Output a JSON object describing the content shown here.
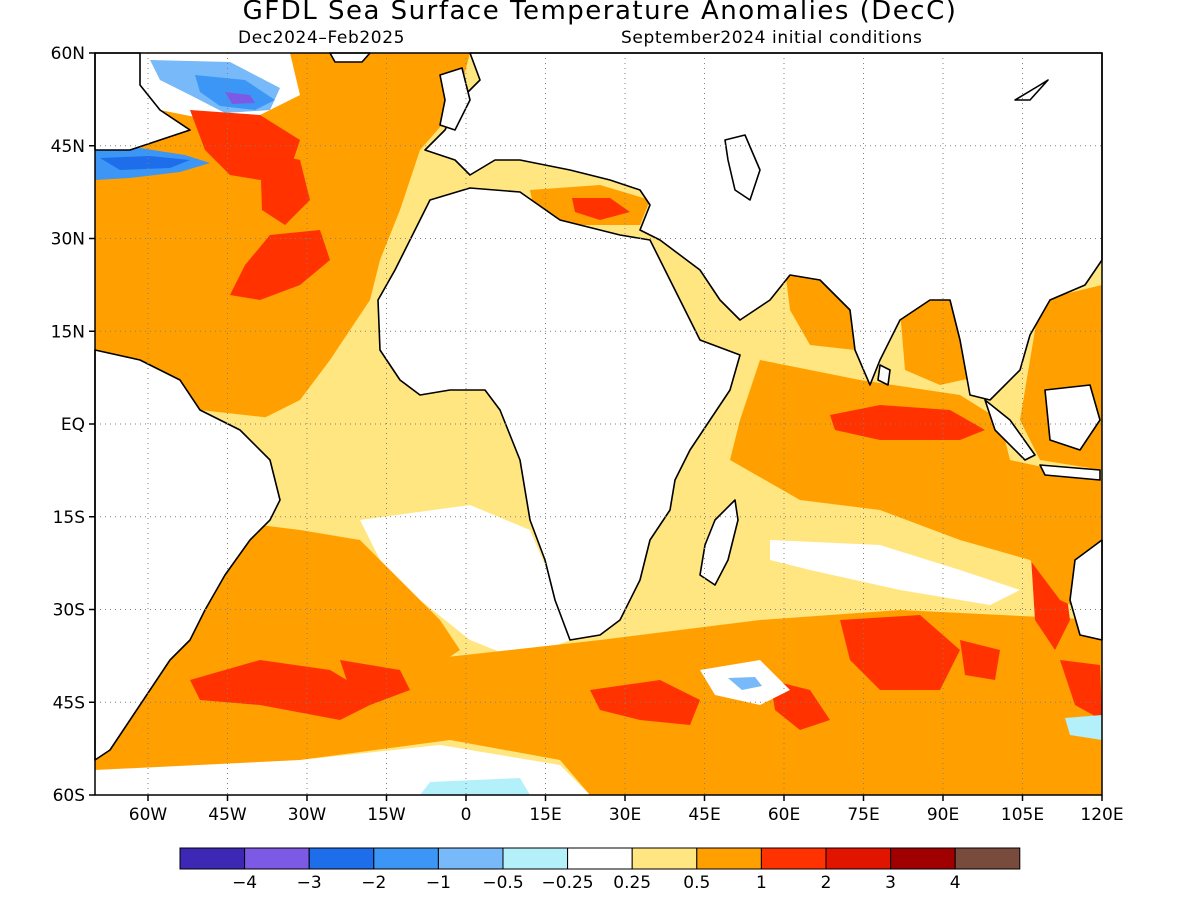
{
  "header": {
    "title": "GFDL Sea Surface Temperature Anomalies (DecC)",
    "period": "Dec2024–Feb2025",
    "initial_conditions": "September2024 initial conditions"
  },
  "map": {
    "projection": "equirectangular",
    "lon_range": [
      -70,
      120
    ],
    "lat_range": [
      -60,
      60
    ],
    "grid": "dotted",
    "lat_ticks": [
      "60N",
      "45N",
      "30N",
      "15N",
      "EQ",
      "15S",
      "30S",
      "45S",
      "60S"
    ],
    "lon_ticks": [
      "60W",
      "45W",
      "30W",
      "15W",
      "0",
      "15E",
      "30E",
      "45E",
      "60E",
      "75E",
      "90E",
      "105E",
      "120E"
    ],
    "colors": {
      "land": "#ffffff",
      "coast": "#000000",
      "anom_0.25_0.5": "#ffe680",
      "anom_0.5_1": "#ffa000",
      "anom_1_2": "#ff3200",
      "anom_2_3": "#e11400",
      "anom_neg_0.25_0.5": "#b4f0fa",
      "anom_neg_0.5_1": "#78b9fa",
      "anom_neg_1_2": "#3c96f5",
      "anom_neg_2_3": "#1e6eeb",
      "anom_neg_3_4": "#7d5ae6",
      "anom_3_4": "#a00000",
      "anom_gt_4": "#784b3c"
    }
  },
  "colorbar": {
    "colors": [
      "#3c28b4",
      "#7d5ae6",
      "#1e6eeb",
      "#3c96f5",
      "#78b9fa",
      "#b4f0fa",
      "#ffffff",
      "#ffe680",
      "#ffa000",
      "#ff3200",
      "#e11400",
      "#a00000",
      "#784b3c"
    ],
    "labels": [
      "−4",
      "−3",
      "−2",
      "−1",
      "−0.5",
      "−0.25",
      "0.25",
      "0.5",
      "1",
      "2",
      "3",
      "4"
    ]
  }
}
